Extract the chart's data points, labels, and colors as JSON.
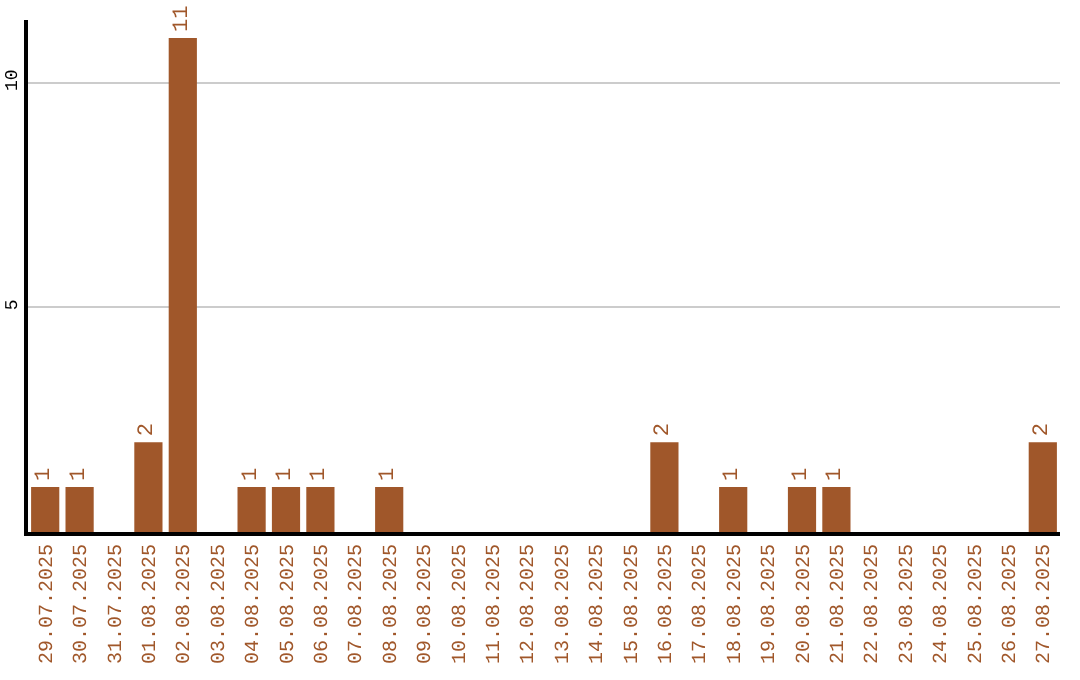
{
  "chart_data": {
    "type": "bar",
    "categories": [
      "29.07.2025",
      "30.07.2025",
      "31.07.2025",
      "01.08.2025",
      "02.08.2025",
      "03.08.2025",
      "04.08.2025",
      "05.08.2025",
      "06.08.2025",
      "07.08.2025",
      "08.08.2025",
      "09.08.2025",
      "10.08.2025",
      "11.08.2025",
      "12.08.2025",
      "13.08.2025",
      "14.08.2025",
      "15.08.2025",
      "16.08.2025",
      "17.08.2025",
      "18.08.2025",
      "19.08.2025",
      "20.08.2025",
      "21.08.2025",
      "22.08.2025",
      "23.08.2025",
      "24.08.2025",
      "25.08.2025",
      "26.08.2025",
      "27.08.2025"
    ],
    "values": [
      1,
      1,
      0,
      2,
      11,
      0,
      1,
      1,
      1,
      0,
      1,
      0,
      0,
      0,
      0,
      0,
      0,
      0,
      2,
      0,
      1,
      0,
      1,
      1,
      0,
      0,
      0,
      0,
      0,
      2
    ],
    "value_labels": [
      "1",
      "1",
      null,
      "2",
      "11",
      null,
      "1",
      "1",
      "1",
      null,
      "1",
      null,
      null,
      null,
      null,
      null,
      null,
      null,
      "2",
      null,
      "1",
      null,
      "1",
      "1",
      null,
      null,
      null,
      null,
      null,
      "2"
    ],
    "color": "#a0572a",
    "ylim": [
      0,
      11.4
    ],
    "yticks": [
      5,
      10
    ],
    "grid": "y",
    "legend": false
  }
}
